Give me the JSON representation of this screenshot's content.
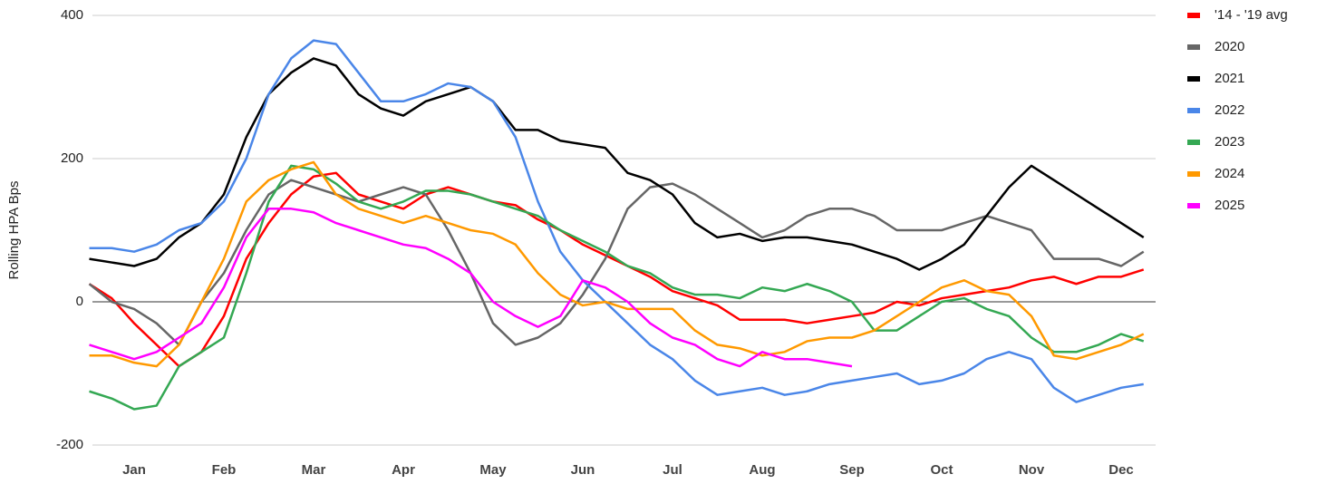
{
  "chart_data": {
    "type": "line",
    "y_label": "Rolling HPA Bps",
    "categories": [
      null,
      null,
      "Jan",
      null,
      null,
      null,
      "Feb",
      null,
      null,
      null,
      "Mar",
      null,
      null,
      null,
      "Apr",
      null,
      null,
      null,
      "May",
      null,
      null,
      null,
      "Jun",
      null,
      null,
      null,
      "Jul",
      null,
      null,
      null,
      "Aug",
      null,
      null,
      null,
      "Sep",
      null,
      null,
      null,
      "Oct",
      null,
      null,
      null,
      "Nov",
      null,
      null,
      null,
      "Dec",
      null
    ],
    "series": [
      {
        "name": "'14 - '19 avg",
        "color": "#ff0000",
        "values": [
          25,
          5,
          -30,
          -60,
          -90,
          -70,
          -20,
          60,
          110,
          150,
          175,
          180,
          150,
          140,
          130,
          150,
          160,
          150,
          140,
          135,
          115,
          100,
          80,
          65,
          50,
          35,
          15,
          5,
          -5,
          -25,
          -25,
          -25,
          -30,
          -25,
          -20,
          -15,
          0,
          -5,
          5,
          10,
          15,
          20,
          30,
          35,
          25,
          35,
          35,
          45
        ]
      },
      {
        "name": "2020",
        "color": "#666666",
        "values": [
          25,
          0,
          -10,
          -30,
          -60,
          0,
          40,
          100,
          150,
          170,
          160,
          150,
          140,
          150,
          160,
          150,
          100,
          40,
          -30,
          -60,
          -50,
          -30,
          10,
          60,
          130,
          160,
          165,
          150,
          130,
          110,
          90,
          100,
          120,
          130,
          130,
          120,
          100,
          100,
          100,
          110,
          120,
          110,
          100,
          60,
          60,
          60,
          50,
          70
        ]
      },
      {
        "name": "2021",
        "color": "#000000",
        "values": [
          60,
          55,
          50,
          60,
          90,
          110,
          150,
          230,
          290,
          320,
          340,
          330,
          290,
          270,
          260,
          280,
          290,
          300,
          280,
          240,
          240,
          225,
          220,
          215,
          180,
          170,
          150,
          110,
          90,
          95,
          85,
          90,
          90,
          85,
          80,
          70,
          60,
          45,
          60,
          80,
          120,
          160,
          190,
          170,
          150,
          130,
          110,
          90
        ]
      },
      {
        "name": "2022",
        "color": "#4a86e8",
        "values": [
          75,
          75,
          70,
          80,
          100,
          110,
          140,
          200,
          290,
          340,
          365,
          360,
          320,
          280,
          280,
          290,
          305,
          300,
          280,
          230,
          140,
          70,
          30,
          0,
          -30,
          -60,
          -80,
          -110,
          -130,
          -125,
          -120,
          -130,
          -125,
          -115,
          -110,
          -105,
          -100,
          -115,
          -110,
          -100,
          -80,
          -70,
          -80,
          -120,
          -140,
          -130,
          -120,
          -115
        ]
      },
      {
        "name": "2023",
        "color": "#34a853",
        "values": [
          -125,
          -135,
          -150,
          -145,
          -90,
          -70,
          -50,
          40,
          140,
          190,
          185,
          165,
          140,
          130,
          140,
          155,
          155,
          150,
          140,
          130,
          120,
          100,
          85,
          70,
          50,
          40,
          20,
          10,
          10,
          5,
          20,
          15,
          25,
          15,
          0,
          -40,
          -40,
          -20,
          0,
          5,
          -10,
          -20,
          -50,
          -70,
          -70,
          -60,
          -45,
          -55
        ]
      },
      {
        "name": "2024",
        "color": "#ff9900",
        "values": [
          -75,
          -75,
          -85,
          -90,
          -60,
          0,
          60,
          140,
          170,
          185,
          195,
          150,
          130,
          120,
          110,
          120,
          110,
          100,
          95,
          80,
          40,
          10,
          -5,
          0,
          -10,
          -10,
          -10,
          -40,
          -60,
          -65,
          -75,
          -70,
          -55,
          -50,
          -50,
          -40,
          -20,
          0,
          20,
          30,
          15,
          10,
          -20,
          -75,
          -80,
          -70,
          -60,
          -45
        ]
      },
      {
        "name": "2025",
        "color": "#ff00ff",
        "values": [
          -60,
          -70,
          -80,
          -70,
          -50,
          -30,
          20,
          90,
          130,
          130,
          125,
          110,
          100,
          90,
          80,
          75,
          60,
          40,
          0,
          -20,
          -35,
          -20,
          30,
          20,
          0,
          -30,
          -50,
          -60,
          -80,
          -90,
          -70,
          -80,
          -80,
          -85,
          -90,
          null,
          null,
          null,
          null,
          null,
          null,
          null,
          null,
          null,
          null,
          null,
          null,
          null
        ]
      }
    ],
    "ylim": [
      -200,
      400
    ],
    "yticks": [
      -200,
      0,
      200,
      400
    ],
    "grid": true,
    "legend": "right"
  }
}
